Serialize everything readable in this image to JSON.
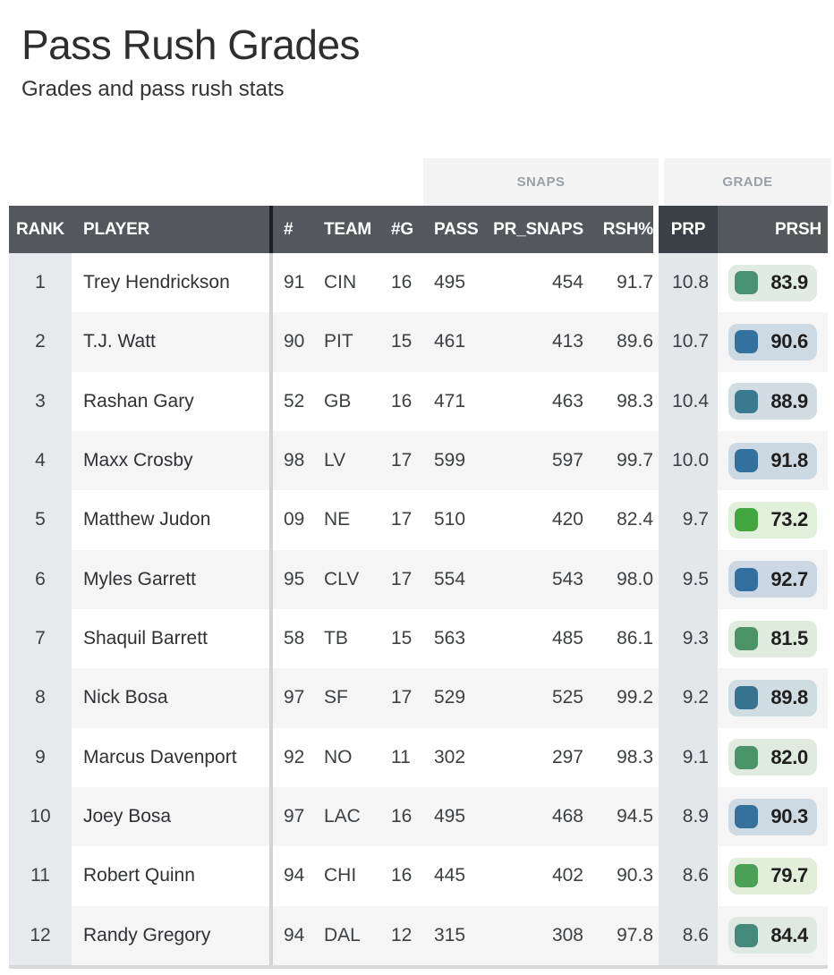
{
  "page": {
    "title": "Pass Rush Grades",
    "subtitle": "Grades and pass rush stats"
  },
  "colors": {
    "header_bg": "#54585d",
    "header_prp_bg": "#3b4046",
    "header_text": "#ffffff",
    "group_header_bg": "#f4f4f5",
    "group_header_text": "#9aa0a6",
    "rank_col_bg": "#e7e9ec",
    "prp_col_bg": "#e4e7ea",
    "row_alt_bg": "#f5f5f6"
  },
  "table": {
    "group_headers": {
      "snaps": "SNAPS",
      "grade": "GRADE"
    },
    "columns": {
      "rank": "RANK",
      "player": "PLAYER",
      "jersey": "#",
      "team": "TEAM",
      "games": "#G",
      "pass": "PASS",
      "pr_snaps": "PR_SNAPS",
      "rsh_pct": "RSH%",
      "prp": "PRP",
      "prsh": "PRSH"
    },
    "rows": [
      {
        "rank": "1",
        "player": "Trey Hendrickson",
        "jersey": "91",
        "team": "CIN",
        "games": "16",
        "pass": "495",
        "pr_snaps": "454",
        "rsh_pct": "91.7",
        "prp": "10.8",
        "prsh": "83.9",
        "grade_color": "#4a9173",
        "grade_bg": "#e0ebe4"
      },
      {
        "rank": "2",
        "player": "T.J. Watt",
        "jersey": "90",
        "team": "PIT",
        "games": "15",
        "pass": "461",
        "pr_snaps": "413",
        "rsh_pct": "89.6",
        "prp": "10.7",
        "prsh": "90.6",
        "grade_color": "#33719e",
        "grade_bg": "#cdd9e3"
      },
      {
        "rank": "3",
        "player": "Rashan Gary",
        "jersey": "52",
        "team": "GB",
        "games": "16",
        "pass": "471",
        "pr_snaps": "463",
        "rsh_pct": "98.3",
        "prp": "10.4",
        "prsh": "88.9",
        "grade_color": "#3a7b91",
        "grade_bg": "#d1dde2"
      },
      {
        "rank": "4",
        "player": "Maxx Crosby",
        "jersey": "98",
        "team": "LV",
        "games": "17",
        "pass": "599",
        "pr_snaps": "597",
        "rsh_pct": "99.7",
        "prp": "10.0",
        "prsh": "91.8",
        "grade_color": "#32709e",
        "grade_bg": "#ccd9e3"
      },
      {
        "rank": "5",
        "player": "Matthew Judon",
        "jersey": "09",
        "team": "NE",
        "games": "17",
        "pass": "510",
        "pr_snaps": "420",
        "rsh_pct": "82.4",
        "prp": "9.7",
        "prsh": "73.2",
        "grade_color": "#41a63e",
        "grade_bg": "#e0f0da"
      },
      {
        "rank": "6",
        "player": "Myles Garrett",
        "jersey": "95",
        "team": "CLV",
        "games": "17",
        "pass": "554",
        "pr_snaps": "543",
        "rsh_pct": "98.0",
        "prp": "9.5",
        "prsh": "92.7",
        "grade_color": "#31709f",
        "grade_bg": "#cbd8e3"
      },
      {
        "rank": "7",
        "player": "Shaquil Barrett",
        "jersey": "58",
        "team": "TB",
        "games": "15",
        "pass": "563",
        "pr_snaps": "485",
        "rsh_pct": "86.1",
        "prp": "9.3",
        "prsh": "81.5",
        "grade_color": "#4c9368",
        "grade_bg": "#dfebdd"
      },
      {
        "rank": "8",
        "player": "Nick Bosa",
        "jersey": "97",
        "team": "SF",
        "games": "17",
        "pass": "529",
        "pr_snaps": "525",
        "rsh_pct": "99.2",
        "prp": "9.2",
        "prsh": "89.8",
        "grade_color": "#38748f",
        "grade_bg": "#cfdce2"
      },
      {
        "rank": "9",
        "player": "Marcus Davenport",
        "jersey": "92",
        "team": "NO",
        "games": "11",
        "pass": "302",
        "pr_snaps": "297",
        "rsh_pct": "98.3",
        "prp": "9.1",
        "prsh": "82.0",
        "grade_color": "#4b9369",
        "grade_bg": "#dfebde"
      },
      {
        "rank": "10",
        "player": "Joey Bosa",
        "jersey": "97",
        "team": "LAC",
        "games": "16",
        "pass": "495",
        "pr_snaps": "468",
        "rsh_pct": "94.5",
        "prp": "8.9",
        "prsh": "90.3",
        "grade_color": "#34719d",
        "grade_bg": "#cdd9e3"
      },
      {
        "rank": "11",
        "player": "Robert Quinn",
        "jersey": "94",
        "team": "CHI",
        "games": "16",
        "pass": "445",
        "pr_snaps": "402",
        "rsh_pct": "90.3",
        "prp": "8.6",
        "prsh": "79.7",
        "grade_color": "#4aa054",
        "grade_bg": "#e0eeda"
      },
      {
        "rank": "12",
        "player": "Randy Gregory",
        "jersey": "94",
        "team": "DAL",
        "games": "12",
        "pass": "315",
        "pr_snaps": "308",
        "rsh_pct": "97.8",
        "prp": "8.6",
        "prsh": "84.4",
        "grade_color": "#45897b",
        "grade_bg": "#dde9e2"
      }
    ]
  }
}
